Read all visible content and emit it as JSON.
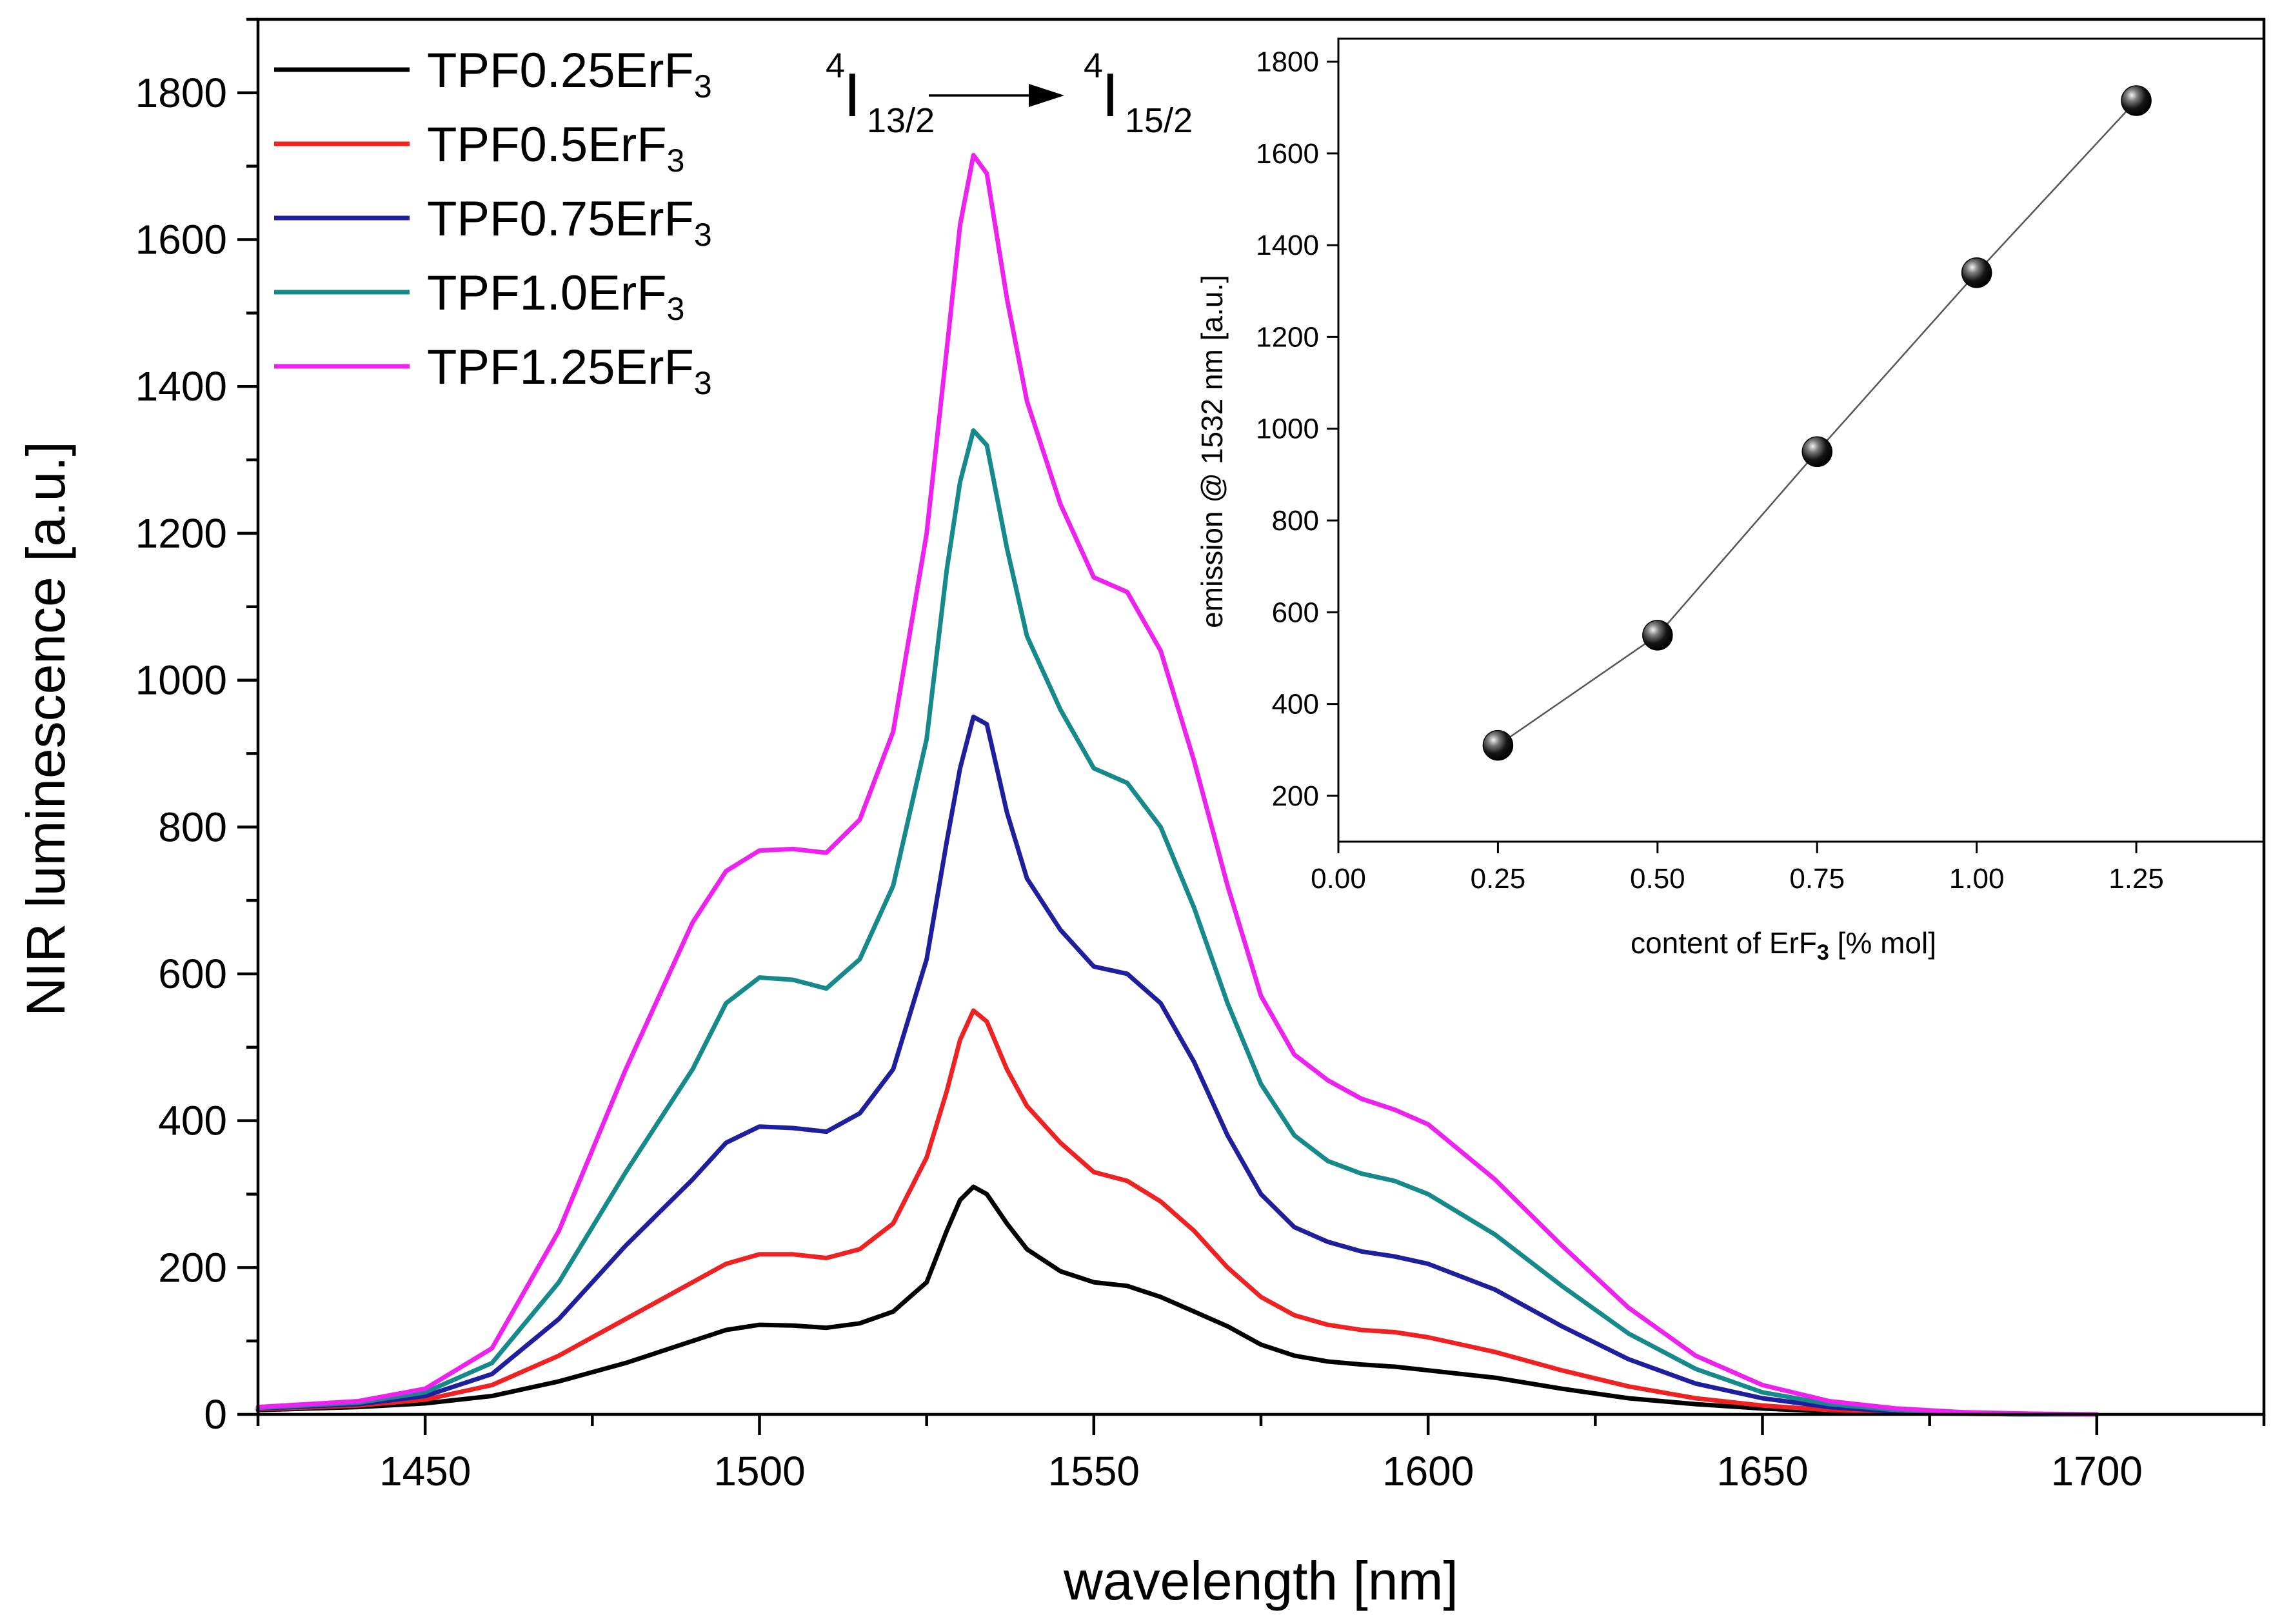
{
  "chart_data": [
    {
      "type": "line",
      "title": "",
      "xlabel": "wavelength [nm]",
      "ylabel": "NIR luminescence [a.u.]",
      "xlim": [
        1425,
        1725
      ],
      "ylim": [
        0,
        1900
      ],
      "xticks": [
        1450,
        1500,
        1550,
        1600,
        1650,
        1700
      ],
      "yticks": [
        0,
        200,
        400,
        600,
        800,
        1000,
        1200,
        1400,
        1600,
        1800
      ],
      "grid": false,
      "legend_position": "top-left",
      "annotation": {
        "from_sup": "4",
        "from_main": "I",
        "from_sub": "13/2",
        "to_sup": "4",
        "to_main": "I",
        "to_sub": "15/2"
      },
      "x": [
        1425,
        1440,
        1450,
        1460,
        1470,
        1480,
        1490,
        1495,
        1500,
        1505,
        1510,
        1515,
        1520,
        1525,
        1528,
        1530,
        1532,
        1534,
        1537,
        1540,
        1545,
        1550,
        1555,
        1560,
        1565,
        1570,
        1575,
        1580,
        1585,
        1590,
        1595,
        1600,
        1610,
        1620,
        1630,
        1640,
        1650,
        1660,
        1670,
        1680,
        1690,
        1700
      ],
      "series": [
        {
          "name": "TPF0.25ErF",
          "name_sub": "3",
          "color": "#000000",
          "values": [
            6,
            10,
            15,
            25,
            45,
            70,
            100,
            115,
            122,
            121,
            118,
            124,
            140,
            180,
            250,
            292,
            310,
            300,
            260,
            225,
            195,
            180,
            175,
            160,
            140,
            120,
            95,
            80,
            72,
            68,
            65,
            60,
            50,
            35,
            22,
            14,
            8,
            4,
            2,
            1,
            0,
            0
          ]
        },
        {
          "name": "TPF0.5ErF",
          "name_sub": "3",
          "color": "#ee2222",
          "values": [
            7,
            12,
            20,
            40,
            80,
            130,
            180,
            205,
            218,
            218,
            213,
            225,
            260,
            350,
            440,
            510,
            550,
            535,
            470,
            420,
            370,
            330,
            318,
            290,
            250,
            200,
            160,
            135,
            122,
            115,
            112,
            105,
            85,
            60,
            38,
            22,
            12,
            6,
            3,
            1,
            0,
            0
          ]
        },
        {
          "name": "TPF0.75ErF",
          "name_sub": "3",
          "color": "#1f1f9e",
          "values": [
            8,
            14,
            25,
            55,
            130,
            230,
            320,
            370,
            392,
            390,
            385,
            410,
            470,
            620,
            780,
            880,
            950,
            940,
            820,
            730,
            660,
            610,
            600,
            560,
            480,
            380,
            300,
            255,
            235,
            222,
            215,
            205,
            170,
            120,
            75,
            42,
            22,
            10,
            4,
            2,
            0,
            0
          ]
        },
        {
          "name": "TPF1.0ErF",
          "name_sub": "3",
          "color": "#168a8a",
          "values": [
            9,
            16,
            30,
            70,
            180,
            330,
            470,
            560,
            595,
            592,
            580,
            620,
            720,
            920,
            1150,
            1270,
            1340,
            1320,
            1180,
            1060,
            960,
            880,
            860,
            800,
            690,
            560,
            450,
            380,
            345,
            328,
            318,
            300,
            245,
            175,
            110,
            62,
            30,
            14,
            6,
            2,
            0,
            0
          ]
        },
        {
          "name": "TPF1.25ErF",
          "name_sub": "3",
          "color": "#ee22ee",
          "values": [
            10,
            18,
            35,
            90,
            250,
            470,
            670,
            740,
            768,
            770,
            765,
            810,
            930,
            1200,
            1450,
            1620,
            1715,
            1690,
            1520,
            1380,
            1240,
            1140,
            1120,
            1040,
            890,
            720,
            570,
            490,
            455,
            430,
            415,
            395,
            320,
            230,
            145,
            80,
            40,
            18,
            8,
            3,
            1,
            0
          ]
        }
      ]
    },
    {
      "type": "scatter",
      "title": "",
      "xlabel_main": "content of ErF",
      "xlabel_sub": "3",
      "xlabel_tail": " [% mol]",
      "ylabel": "emission @ 1532 nm [a.u.]",
      "xlim": [
        0,
        1.45
      ],
      "ylim": [
        100,
        1850
      ],
      "xticks": [
        "0.00",
        "0.25",
        "0.50",
        "0.75",
        "1.00",
        "1.25"
      ],
      "yticks": [
        200,
        400,
        600,
        800,
        1000,
        1200,
        1400,
        1600,
        1800
      ],
      "grid": false,
      "x": [
        0.25,
        0.5,
        0.75,
        1.0,
        1.25
      ],
      "values": [
        310,
        550,
        950,
        1340,
        1715
      ],
      "marker_color": "#000000",
      "line_color": "#555555"
    }
  ]
}
